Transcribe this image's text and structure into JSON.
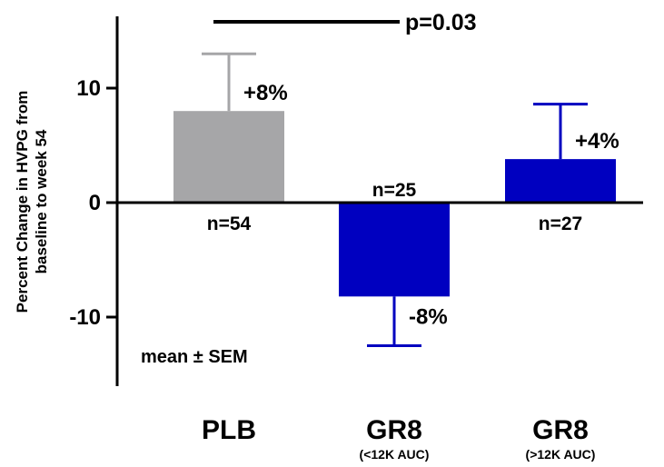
{
  "chart_data": {
    "type": "bar",
    "ylabel": "Percent Change in HVPG from baseline to week 54",
    "ylim": [
      -16,
      16
    ],
    "y_ticks": [
      10,
      0,
      -10
    ],
    "y_tick_labels": [
      "10",
      "0",
      "-10"
    ],
    "categories": [
      "PLB",
      "GR8",
      "GR8"
    ],
    "category_sublabels": [
      "",
      "(<12K AUC)",
      "(>12K AUC)"
    ],
    "values": [
      8,
      -8.2,
      3.8
    ],
    "sem": [
      5,
      4.3,
      4.8
    ],
    "value_labels": [
      "+8%",
      "-8%",
      "+4%"
    ],
    "n_labels": [
      "n=54",
      "n=25",
      "n=27"
    ],
    "colors": [
      "#a6a6a8",
      "#0000c0",
      "#0000c0"
    ],
    "significance": {
      "label": "p=0.03"
    },
    "annotation": "mean ± SEM"
  }
}
